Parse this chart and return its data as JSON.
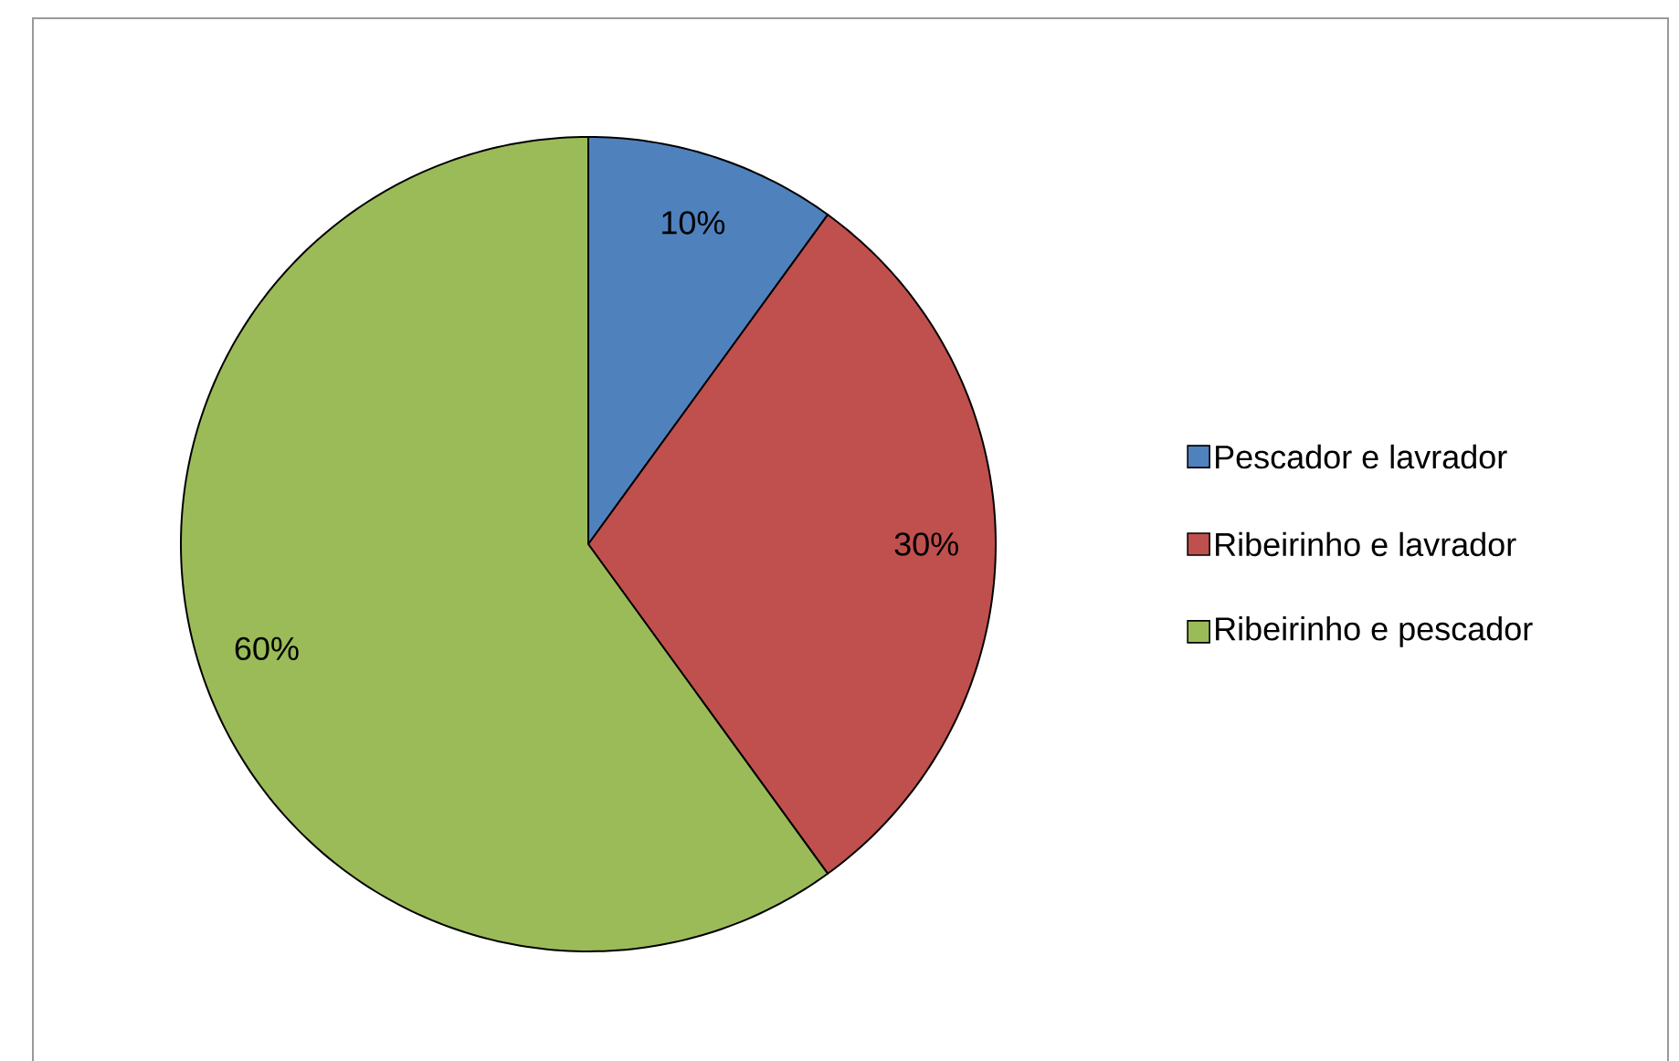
{
  "chart_data": {
    "type": "pie",
    "categories": [
      "Pescador e lavrador",
      "Ribeirinho e lavrador",
      "Ribeirinho e pescador"
    ],
    "values": [
      10,
      30,
      60
    ],
    "colors": [
      "#4f81bd",
      "#c0504d",
      "#9bbb59"
    ],
    "value_labels": [
      "10%",
      "30%",
      "60%"
    ],
    "legend": "right"
  }
}
